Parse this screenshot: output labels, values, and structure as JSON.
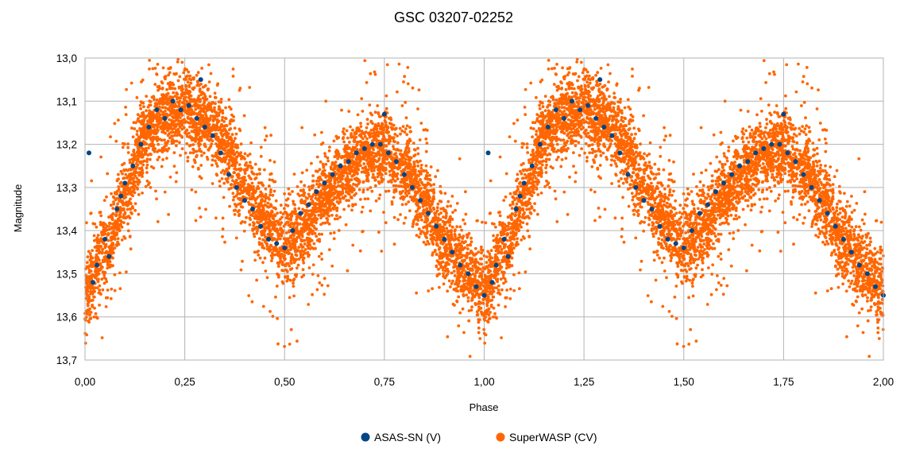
{
  "chart_data": {
    "type": "scatter",
    "title": "GSC 03207-02252",
    "xlabel": "Phase",
    "ylabel": "Magnitude",
    "xlim": [
      0.0,
      2.0
    ],
    "ylim": [
      13.7,
      13.0
    ],
    "y_inverted": true,
    "grid": true,
    "legend_position": "bottom",
    "x_ticks": [
      0.0,
      0.25,
      0.5,
      0.75,
      1.0,
      1.25,
      1.5,
      1.75,
      2.0
    ],
    "x_tick_labels": [
      "0,00",
      "0,25",
      "0,50",
      "0,75",
      "1,00",
      "1,25",
      "1,50",
      "1,75",
      "2,00"
    ],
    "y_ticks": [
      13.0,
      13.1,
      13.2,
      13.3,
      13.4,
      13.5,
      13.6,
      13.7
    ],
    "y_tick_labels": [
      "13,0",
      "13,1",
      "13,2",
      "13,3",
      "13,4",
      "13,5",
      "13,6",
      "13,7"
    ],
    "light_curve_nodes": {
      "phase": [
        0.0,
        0.05,
        0.1,
        0.15,
        0.2,
        0.25,
        0.3,
        0.35,
        0.4,
        0.45,
        0.5,
        0.55,
        0.6,
        0.65,
        0.7,
        0.75,
        0.8,
        0.85,
        0.9,
        0.95,
        1.0
      ],
      "magnitude": [
        13.54,
        13.45,
        13.32,
        13.18,
        13.13,
        13.12,
        13.14,
        13.2,
        13.3,
        13.37,
        13.44,
        13.4,
        13.32,
        13.26,
        13.22,
        13.21,
        13.25,
        13.33,
        13.42,
        13.49,
        13.54
      ]
    },
    "series": [
      {
        "name": "ASAS-SN (V)",
        "color": "#004586",
        "marker_radius": 3.0,
        "points": [
          [
            0.01,
            13.22
          ],
          [
            0.02,
            13.52
          ],
          [
            0.03,
            13.48
          ],
          [
            0.05,
            13.42
          ],
          [
            0.06,
            13.46
          ],
          [
            0.08,
            13.35
          ],
          [
            0.09,
            13.32
          ],
          [
            0.1,
            13.29
          ],
          [
            0.12,
            13.25
          ],
          [
            0.14,
            13.2
          ],
          [
            0.16,
            13.16
          ],
          [
            0.18,
            13.12
          ],
          [
            0.2,
            13.14
          ],
          [
            0.22,
            13.1
          ],
          [
            0.24,
            13.12
          ],
          [
            0.26,
            13.11
          ],
          [
            0.28,
            13.14
          ],
          [
            0.29,
            13.05
          ],
          [
            0.3,
            13.16
          ],
          [
            0.32,
            13.18
          ],
          [
            0.34,
            13.22
          ],
          [
            0.36,
            13.27
          ],
          [
            0.38,
            13.3
          ],
          [
            0.4,
            13.33
          ],
          [
            0.42,
            13.35
          ],
          [
            0.44,
            13.39
          ],
          [
            0.46,
            13.42
          ],
          [
            0.48,
            13.43
          ],
          [
            0.5,
            13.44
          ],
          [
            0.52,
            13.4
          ],
          [
            0.54,
            13.36
          ],
          [
            0.56,
            13.34
          ],
          [
            0.58,
            13.31
          ],
          [
            0.6,
            13.29
          ],
          [
            0.62,
            13.27
          ],
          [
            0.64,
            13.25
          ],
          [
            0.66,
            13.24
          ],
          [
            0.68,
            13.22
          ],
          [
            0.7,
            13.21
          ],
          [
            0.72,
            13.2
          ],
          [
            0.74,
            13.2
          ],
          [
            0.75,
            13.13
          ],
          [
            0.76,
            13.22
          ],
          [
            0.78,
            13.24
          ],
          [
            0.8,
            13.27
          ],
          [
            0.82,
            13.3
          ],
          [
            0.84,
            13.33
          ],
          [
            0.86,
            13.36
          ],
          [
            0.88,
            13.39
          ],
          [
            0.9,
            13.42
          ],
          [
            0.92,
            13.45
          ],
          [
            0.94,
            13.48
          ],
          [
            0.96,
            13.5
          ],
          [
            0.98,
            13.53
          ],
          [
            1.0,
            13.55
          ]
        ]
      },
      {
        "name": "SuperWASP (CV)",
        "color": "#ff6600",
        "marker_radius": 1.9,
        "scatter_sigma": 0.045,
        "outlier_fraction": 0.07
      }
    ]
  },
  "legend": {
    "items": [
      {
        "label": "ASAS-SN (V)",
        "color": "#004586"
      },
      {
        "label": "SuperWASP (CV)",
        "color": "#ff6600"
      }
    ]
  }
}
